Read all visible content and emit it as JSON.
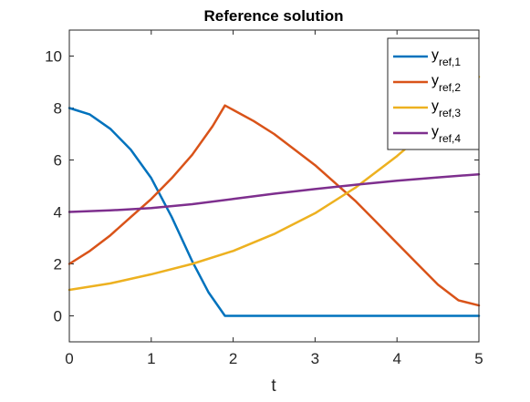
{
  "chart_data": {
    "type": "line",
    "title": "Reference solution",
    "xlabel": "t",
    "ylabel": "",
    "xlim": [
      0,
      5
    ],
    "ylim": [
      -1,
      11
    ],
    "xticks": [
      0,
      1,
      2,
      3,
      4,
      5
    ],
    "yticks": [
      0,
      2,
      4,
      6,
      8,
      10
    ],
    "xtick_labels": [
      "0",
      "1",
      "2",
      "3",
      "4",
      "5"
    ],
    "ytick_labels": [
      "0",
      "2",
      "4",
      "6",
      "8",
      "10"
    ],
    "grid": false,
    "legend_position": "top-right",
    "series": [
      {
        "name": "y_ref,1",
        "legend_base": "y",
        "legend_sub": "ref,1",
        "color": "#0072BD",
        "x": [
          0,
          0.25,
          0.5,
          0.75,
          1.0,
          1.25,
          1.5,
          1.7,
          1.9,
          2.5,
          3,
          3.5,
          4,
          4.5,
          5
        ],
        "y": [
          8.0,
          7.75,
          7.2,
          6.4,
          5.3,
          3.8,
          2.1,
          0.9,
          0.0,
          0.0,
          0.0,
          0.0,
          0.0,
          0.0,
          0.0
        ]
      },
      {
        "name": "y_ref,2",
        "legend_base": "y",
        "legend_sub": "ref,2",
        "color": "#D95319",
        "x": [
          0,
          0.25,
          0.5,
          0.75,
          1.0,
          1.25,
          1.5,
          1.75,
          1.9,
          2.25,
          2.5,
          2.75,
          3.0,
          3.25,
          3.5,
          3.75,
          4.0,
          4.25,
          4.5,
          4.75,
          5.0
        ],
        "y": [
          2.0,
          2.5,
          3.1,
          3.8,
          4.5,
          5.3,
          6.2,
          7.3,
          8.1,
          7.5,
          7.0,
          6.4,
          5.8,
          5.1,
          4.4,
          3.6,
          2.8,
          2.0,
          1.2,
          0.6,
          0.4
        ]
      },
      {
        "name": "y_ref,3",
        "legend_base": "y",
        "legend_sub": "ref,3",
        "color": "#EDB120",
        "x": [
          0,
          0.5,
          1.0,
          1.5,
          2.0,
          2.5,
          3.0,
          3.5,
          4.0,
          4.5,
          5.0
        ],
        "y": [
          1.0,
          1.25,
          1.6,
          2.0,
          2.5,
          3.15,
          3.95,
          4.95,
          6.15,
          7.5,
          9.2
        ]
      },
      {
        "name": "y_ref,4",
        "legend_base": "y",
        "legend_sub": "ref,4",
        "color": "#7E2F8E",
        "x": [
          0,
          0.5,
          1.0,
          1.5,
          2.0,
          2.5,
          3.0,
          3.5,
          4.0,
          4.5,
          5.0
        ],
        "y": [
          4.0,
          4.06,
          4.15,
          4.3,
          4.5,
          4.7,
          4.88,
          5.05,
          5.2,
          5.33,
          5.45
        ]
      }
    ]
  }
}
